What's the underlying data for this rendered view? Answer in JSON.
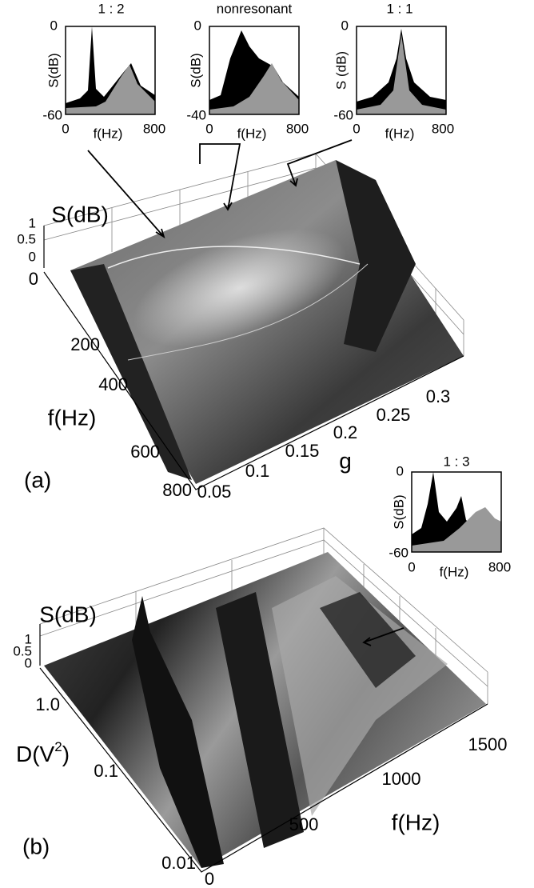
{
  "panel_a": {
    "label": "(a)",
    "insets": [
      {
        "title": "1 : 2",
        "y_label": "S(dB)",
        "y_ticks": [
          "0",
          "-60"
        ],
        "x_label": "f(Hz)",
        "x_ticks": [
          "0",
          "800"
        ]
      },
      {
        "title": "nonresonant",
        "y_label": "S(dB)",
        "y_ticks": [
          "0",
          "-40"
        ],
        "x_label": "f(Hz)",
        "x_ticks": [
          "0",
          "800"
        ]
      },
      {
        "title": "1 : 1",
        "y_label": "S (dB)",
        "y_ticks": [
          "0",
          "-60"
        ],
        "x_label": "f(Hz)",
        "x_ticks": [
          "0",
          "800"
        ]
      }
    ],
    "z_label": "S(dB)",
    "z_ticks": [
      "1",
      "0.5",
      "0"
    ],
    "f_label": "f(Hz)",
    "f_ticks": [
      "0",
      "200",
      "400",
      "600",
      "800"
    ],
    "g_label": "g",
    "g_ticks": [
      "0.05",
      "0.1",
      "0.15",
      "0.2",
      "0.25",
      "0.3"
    ]
  },
  "panel_b": {
    "label": "(b)",
    "inset": {
      "title": "1 : 3",
      "y_label": "S(dB)",
      "y_ticks": [
        "0",
        "-60"
      ],
      "x_label": "f(Hz)",
      "x_ticks": [
        "0",
        "800"
      ]
    },
    "z_label": "S(dB)",
    "z_ticks": [
      "1",
      "0.5",
      "0"
    ],
    "d_label": "D(V",
    "d_label_sup": "2",
    "d_label_end": ")",
    "d_ticks": [
      "1.0",
      "0.1",
      "0.01"
    ],
    "f_label": "f(Hz)",
    "f_ticks": [
      "0",
      "500",
      "1000",
      "1500"
    ]
  }
}
